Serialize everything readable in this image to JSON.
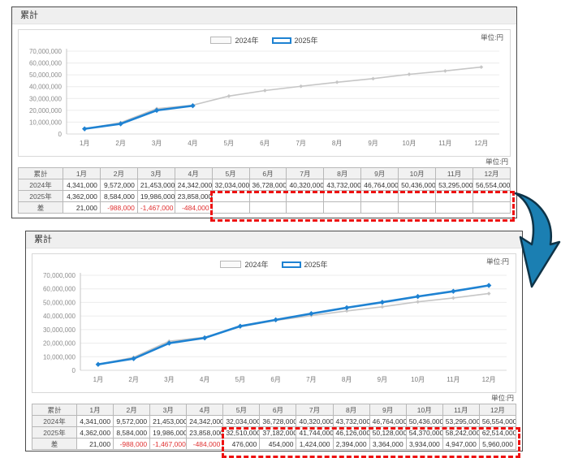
{
  "colors": {
    "series_2024": "#c6c6c6",
    "series_2025": "#1e82d2",
    "negative": "#e03131",
    "highlight_border": "#ee1111",
    "arrow_fill": "#1b7fb2",
    "arrow_stroke": "#0e3347"
  },
  "months": [
    "1月",
    "2月",
    "3月",
    "4月",
    "5月",
    "6月",
    "7月",
    "8月",
    "9月",
    "10月",
    "11月",
    "12月"
  ],
  "panels": [
    {
      "title": "累計",
      "unit_label": "単位:円",
      "legend": [
        {
          "label": "2024年"
        },
        {
          "label": "2025年"
        }
      ],
      "table": {
        "corner": "累計",
        "rows": [
          {
            "label": "2024年",
            "values": [
              4341000,
              9572000,
              21453000,
              24342000,
              32034000,
              36728000,
              40320000,
              43732000,
              46764000,
              50436000,
              53295000,
              56554000
            ]
          },
          {
            "label": "2025年",
            "values": [
              4362000,
              8584000,
              19986000,
              23858000,
              null,
              null,
              null,
              null,
              null,
              null,
              null,
              null
            ]
          },
          {
            "label": "差",
            "values": [
              21000,
              -988000,
              -1467000,
              -484000,
              null,
              null,
              null,
              null,
              null,
              null,
              null,
              null
            ]
          }
        ]
      }
    },
    {
      "title": "累計",
      "unit_label": "単位:円",
      "legend": [
        {
          "label": "2024年"
        },
        {
          "label": "2025年"
        }
      ],
      "table": {
        "corner": "累計",
        "rows": [
          {
            "label": "2024年",
            "values": [
              4341000,
              9572000,
              21453000,
              24342000,
              32034000,
              36728000,
              40320000,
              43732000,
              46764000,
              50436000,
              53295000,
              56554000
            ]
          },
          {
            "label": "2025年",
            "values": [
              4362000,
              8584000,
              19986000,
              23858000,
              32510000,
              37182000,
              41744000,
              46126000,
              50128000,
              54370000,
              58242000,
              62514000
            ]
          },
          {
            "label": "差",
            "values": [
              21000,
              -988000,
              -1467000,
              -484000,
              476000,
              454000,
              1424000,
              2394000,
              3364000,
              3934000,
              4947000,
              5960000
            ]
          }
        ]
      }
    }
  ],
  "chart_data": [
    {
      "type": "line",
      "title": "累計",
      "unit": "単位:円",
      "categories": [
        "1月",
        "2月",
        "3月",
        "4月",
        "5月",
        "6月",
        "7月",
        "8月",
        "9月",
        "10月",
        "11月",
        "12月"
      ],
      "series": [
        {
          "name": "2024年",
          "values": [
            4341000,
            9572000,
            21453000,
            24342000,
            32034000,
            36728000,
            40320000,
            43732000,
            46764000,
            50436000,
            53295000,
            56554000
          ]
        },
        {
          "name": "2025年",
          "values": [
            4362000,
            8584000,
            19986000,
            23858000
          ]
        }
      ],
      "xlabel": "",
      "ylabel": "",
      "ylim": [
        0,
        70000000
      ],
      "ytick_step": 10000000,
      "grid": "horizontal",
      "legend_position": "top-center"
    },
    {
      "type": "line",
      "title": "累計",
      "unit": "単位:円",
      "categories": [
        "1月",
        "2月",
        "3月",
        "4月",
        "5月",
        "6月",
        "7月",
        "8月",
        "9月",
        "10月",
        "11月",
        "12月"
      ],
      "series": [
        {
          "name": "2024年",
          "values": [
            4341000,
            9572000,
            21453000,
            24342000,
            32034000,
            36728000,
            40320000,
            43732000,
            46764000,
            50436000,
            53295000,
            56554000
          ]
        },
        {
          "name": "2025年",
          "values": [
            4362000,
            8584000,
            19986000,
            23858000,
            32510000,
            37182000,
            41744000,
            46126000,
            50128000,
            54370000,
            58242000,
            62514000
          ]
        }
      ],
      "xlabel": "",
      "ylabel": "",
      "ylim": [
        0,
        70000000
      ],
      "ytick_step": 10000000,
      "grid": "horizontal",
      "legend_position": "top-center"
    }
  ]
}
